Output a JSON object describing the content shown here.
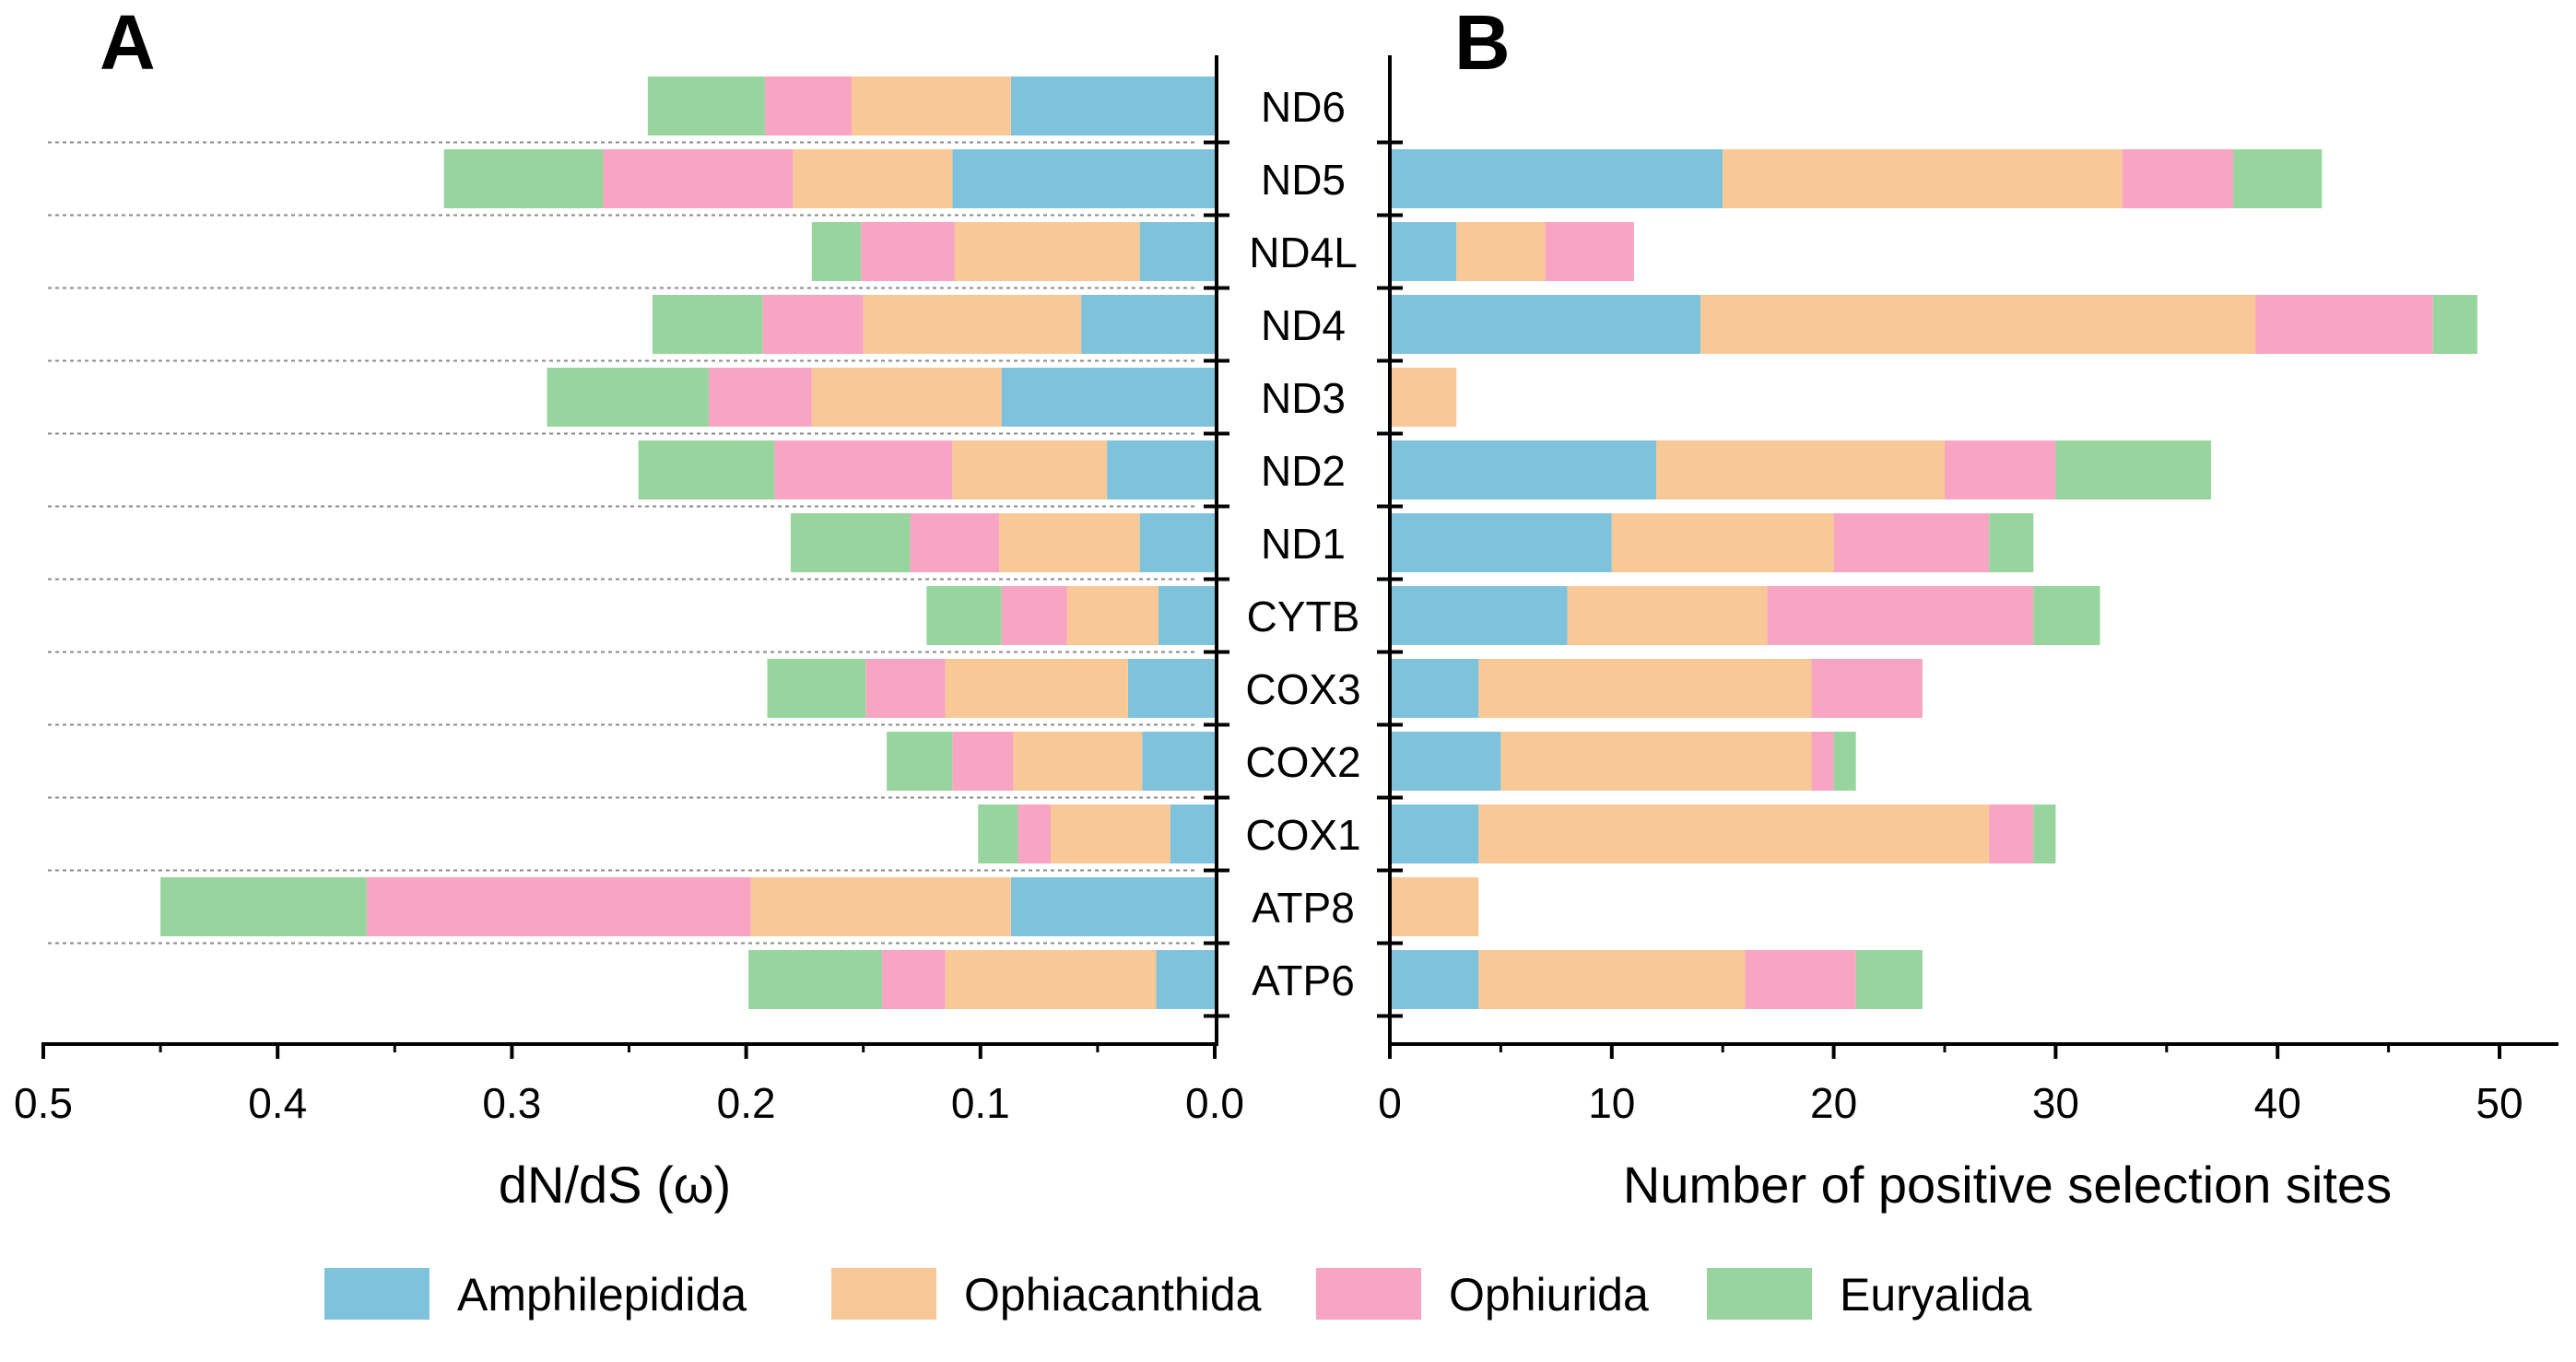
{
  "panel_labels": [
    "A",
    "B"
  ],
  "chart_data": [
    {
      "type": "bar",
      "orientation": "horizontal",
      "stacked": true,
      "panel": "A",
      "categories": [
        "ND6",
        "ND5",
        "ND4L",
        "ND4",
        "ND3",
        "ND2",
        "ND1",
        "CYTB",
        "COX3",
        "COX2",
        "COX1",
        "ATP8",
        "ATP6"
      ],
      "series": [
        {
          "name": "Amphilepidida",
          "color": "#7fc2dc",
          "values": [
            0.087,
            0.112,
            0.032,
            0.057,
            0.091,
            0.046,
            0.032,
            0.024,
            0.037,
            0.031,
            0.019,
            0.087,
            0.025
          ]
        },
        {
          "name": "Ophiacanthida",
          "color": "#f8c996",
          "values": [
            0.068,
            0.068,
            0.079,
            0.093,
            0.081,
            0.066,
            0.06,
            0.039,
            0.078,
            0.055,
            0.051,
            0.111,
            0.09
          ]
        },
        {
          "name": "Ophiurida",
          "color": "#f7a5c3",
          "values": [
            0.037,
            0.081,
            0.04,
            0.043,
            0.044,
            0.076,
            0.038,
            0.028,
            0.034,
            0.026,
            0.014,
            0.164,
            0.027
          ]
        },
        {
          "name": "Euryalida",
          "color": "#98d59e",
          "values": [
            0.05,
            0.068,
            0.021,
            0.047,
            0.069,
            0.058,
            0.051,
            0.032,
            0.042,
            0.028,
            0.017,
            0.088,
            0.057
          ]
        }
      ],
      "xlim": [
        0.5,
        0.0
      ],
      "xticks": [
        "0.5",
        "0.4",
        "0.3",
        "0.2",
        "0.1",
        "0.0"
      ],
      "xlabel": "dN/dS (ω)",
      "ylabel": "",
      "title": ""
    },
    {
      "type": "bar",
      "orientation": "horizontal",
      "stacked": true,
      "panel": "B",
      "categories": [
        "ND6",
        "ND5",
        "ND4L",
        "ND4",
        "ND3",
        "ND2",
        "ND1",
        "CYTB",
        "COX3",
        "COX2",
        "COX1",
        "ATP8",
        "ATP6"
      ],
      "series": [
        {
          "name": "Amphilepidida",
          "color": "#7fc2dc",
          "values": [
            0,
            15,
            3,
            14,
            0,
            12,
            10,
            8,
            4,
            5,
            4,
            0,
            4
          ]
        },
        {
          "name": "Ophiacanthida",
          "color": "#f8c996",
          "values": [
            0,
            18,
            4,
            25,
            3,
            13,
            10,
            9,
            15,
            14,
            23,
            4,
            12
          ]
        },
        {
          "name": "Ophiurida",
          "color": "#f7a5c3",
          "values": [
            0,
            5,
            4,
            8,
            0,
            5,
            7,
            12,
            5,
            1,
            2,
            0,
            5
          ]
        },
        {
          "name": "Euryalida",
          "color": "#98d59e",
          "values": [
            0,
            4,
            0,
            2,
            0,
            7,
            2,
            3,
            0,
            1,
            1,
            0,
            3
          ]
        }
      ],
      "xlim": [
        0,
        54
      ],
      "xticks": [
        "0",
        "10",
        "20",
        "30",
        "40",
        "50"
      ],
      "xlabel": "Number of positive selection sites",
      "ylabel": "",
      "title": ""
    }
  ],
  "legend": [
    {
      "label": "Amphilepidida",
      "color": "#7fc2dc"
    },
    {
      "label": "Ophiacanthida",
      "color": "#f8c996"
    },
    {
      "label": "Ophiurida",
      "color": "#f7a5c3"
    },
    {
      "label": "Euryalida",
      "color": "#98d59e"
    }
  ]
}
